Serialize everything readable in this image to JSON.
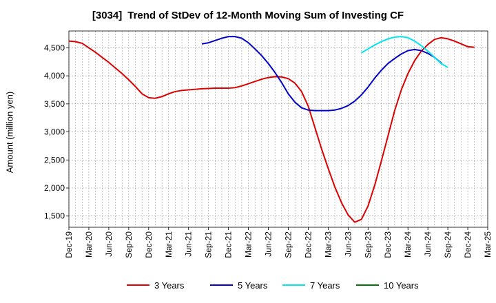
{
  "chart_data": {
    "type": "line",
    "title_code": "[3034]",
    "title": "Trend of StDev of 12-Month Moving Sum of Investing CF",
    "xlabel": "",
    "ylabel": "Amount (million yen)",
    "grid": true,
    "legend_position": "bottom",
    "ylim": [
      1300,
      4800
    ],
    "y_ticks": [
      1500,
      2000,
      2500,
      3000,
      3500,
      4000,
      4500
    ],
    "y_tick_labels": [
      "1,500",
      "2,000",
      "2,500",
      "3,000",
      "3,500",
      "4,000",
      "4,500"
    ],
    "x_range": [
      "2019-12",
      "2025-03"
    ],
    "x_tick_labels": [
      "Dec-19",
      "Mar-20",
      "Jun-20",
      "Sep-20",
      "Dec-20",
      "Mar-21",
      "Jun-21",
      "Sep-21",
      "Dec-21",
      "Mar-22",
      "Jun-22",
      "Sep-22",
      "Dec-22",
      "Mar-23",
      "Jun-23",
      "Sep-23",
      "Dec-23",
      "Mar-24",
      "Jun-24",
      "Sep-24",
      "Dec-24",
      "Mar-25"
    ],
    "series": [
      {
        "name": "3 Years",
        "color": "#dd0000",
        "start": "2019-12",
        "values": [
          4620,
          4610,
          4580,
          4500,
          4420,
          4330,
          4240,
          4140,
          4040,
          3930,
          3810,
          3680,
          3610,
          3600,
          3630,
          3680,
          3720,
          3740,
          3750,
          3760,
          3770,
          3775,
          3780,
          3780,
          3780,
          3790,
          3820,
          3860,
          3900,
          3940,
          3970,
          3985,
          3980,
          3950,
          3870,
          3720,
          3460,
          3080,
          2700,
          2350,
          2020,
          1740,
          1520,
          1390,
          1440,
          1680,
          2050,
          2480,
          2930,
          3380,
          3750,
          4040,
          4270,
          4440,
          4560,
          4650,
          4680,
          4660,
          4620,
          4570,
          4520,
          4510
        ]
      },
      {
        "name": "5 Years",
        "color": "#0000cc",
        "start": "2021-08",
        "values": [
          4570,
          4590,
          4630,
          4670,
          4700,
          4700,
          4670,
          4590,
          4480,
          4360,
          4220,
          4060,
          3880,
          3680,
          3530,
          3430,
          3390,
          3380,
          3380,
          3380,
          3390,
          3420,
          3470,
          3550,
          3660,
          3800,
          3960,
          4100,
          4220,
          4310,
          4390,
          4450,
          4470,
          4450,
          4400,
          4330,
          4230
        ]
      },
      {
        "name": "7 Years",
        "color": "#00e5ee",
        "start": "2023-08",
        "values": [
          4410,
          4480,
          4550,
          4610,
          4660,
          4690,
          4700,
          4680,
          4620,
          4540,
          4440,
          4330,
          4220,
          4150
        ]
      },
      {
        "name": "10 Years",
        "color": "#007700",
        "start": "2019-12",
        "values": []
      }
    ]
  }
}
